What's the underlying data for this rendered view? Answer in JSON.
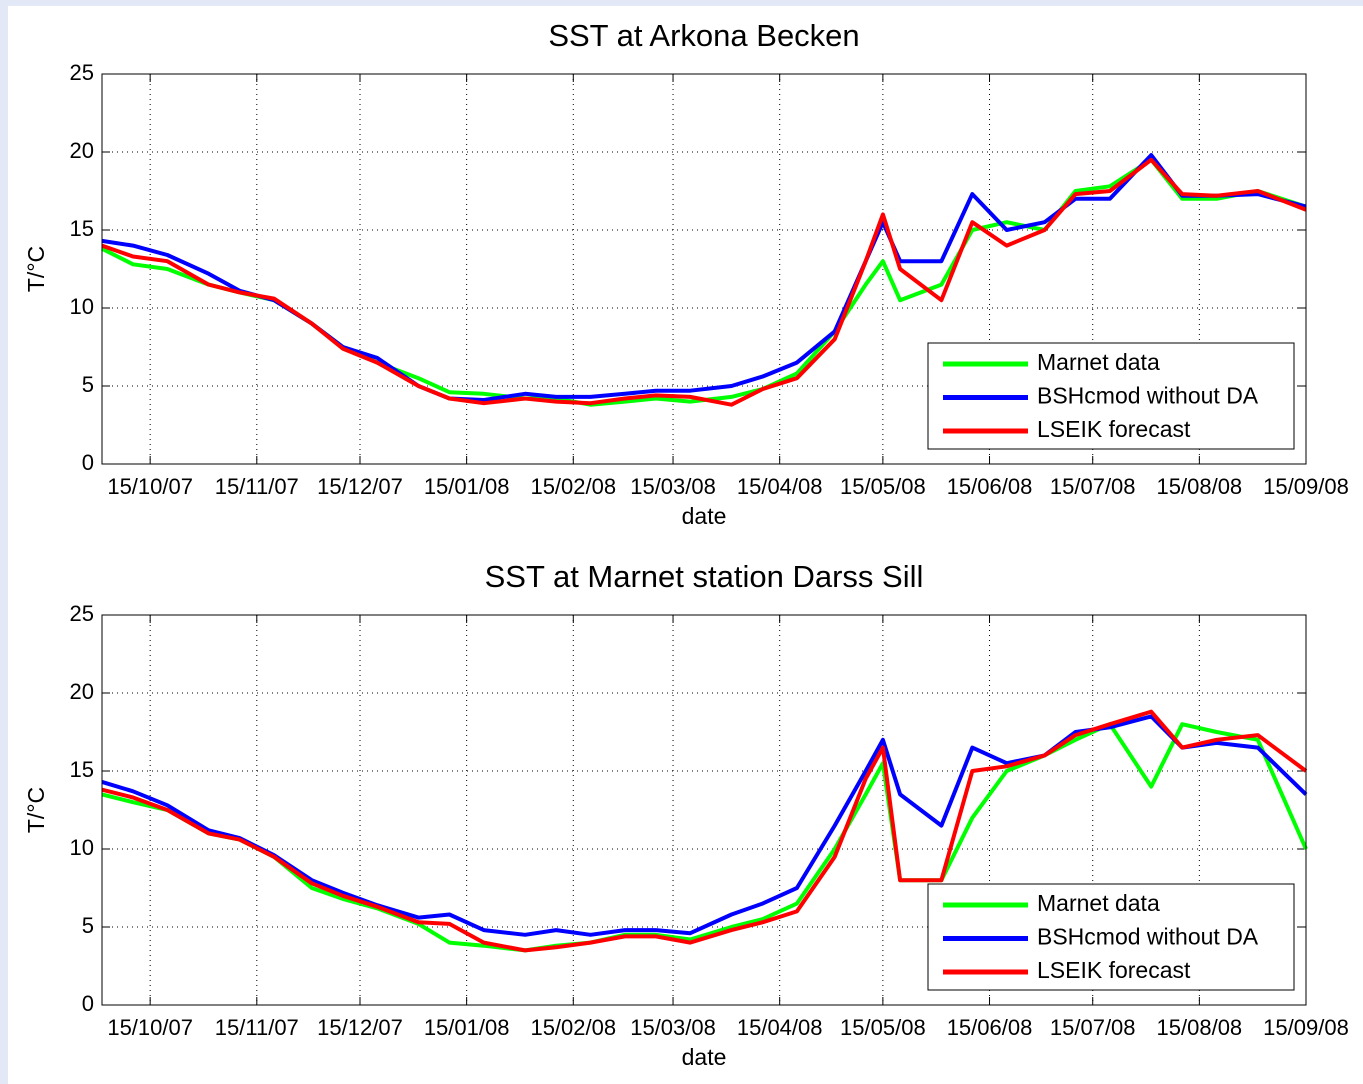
{
  "chart_data": [
    {
      "type": "line",
      "title": "SST at Arkona Becken",
      "xlabel": "date",
      "ylabel": "T/°C",
      "x": [
        "2007-10-01",
        "2007-10-10",
        "2007-10-20",
        "2007-11-01",
        "2007-11-10",
        "2007-11-20",
        "2007-12-01",
        "2007-12-10",
        "2007-12-20",
        "2008-01-01",
        "2008-01-10",
        "2008-01-20",
        "2008-02-01",
        "2008-02-10",
        "2008-02-20",
        "2008-03-01",
        "2008-03-10",
        "2008-03-20",
        "2008-04-01",
        "2008-04-10",
        "2008-04-20",
        "2008-05-01",
        "2008-05-10",
        "2008-05-15",
        "2008-05-20",
        "2008-06-01",
        "2008-06-10",
        "2008-06-20",
        "2008-07-01",
        "2008-07-10",
        "2008-07-20",
        "2008-08-01",
        "2008-08-10",
        "2008-08-20",
        "2008-09-01",
        "2008-09-15"
      ],
      "series": [
        {
          "name": "Marnet data",
          "color": "#00ff00",
          "values": [
            13.8,
            12.8,
            12.5,
            11.5,
            11.0,
            10.5,
            9.0,
            7.5,
            6.5,
            5.5,
            4.6,
            4.5,
            4.2,
            4.2,
            3.8,
            4.0,
            4.2,
            4.0,
            4.3,
            4.8,
            5.8,
            8.5,
            11.5,
            13.0,
            10.5,
            11.5,
            15.0,
            15.5,
            15.0,
            17.5,
            17.8,
            19.5,
            17.0,
            17.0,
            17.5,
            16.5
          ]
        },
        {
          "name": "BSHcmod without DA",
          "color": "#0000ff",
          "values": [
            14.3,
            14.0,
            13.4,
            12.2,
            11.1,
            10.5,
            9.0,
            7.5,
            6.8,
            5.0,
            4.2,
            4.1,
            4.5,
            4.3,
            4.3,
            4.5,
            4.7,
            4.7,
            5.0,
            5.6,
            6.5,
            8.5,
            13.0,
            15.5,
            13.0,
            13.0,
            17.3,
            15.0,
            15.5,
            17.0,
            17.0,
            19.8,
            17.2,
            17.2,
            17.3,
            16.5
          ]
        },
        {
          "name": "LSEIK forecast",
          "color": "#ff0000",
          "values": [
            14.0,
            13.3,
            13.0,
            11.5,
            11.0,
            10.6,
            9.0,
            7.4,
            6.5,
            5.0,
            4.2,
            3.9,
            4.2,
            4.0,
            3.9,
            4.2,
            4.4,
            4.3,
            3.8,
            4.8,
            5.5,
            8.0,
            13.0,
            16.0,
            12.5,
            10.5,
            15.5,
            14.0,
            15.0,
            17.3,
            17.5,
            19.5,
            17.3,
            17.2,
            17.5,
            16.3
          ]
        }
      ],
      "xlim": [
        "2007-10-01",
        "2008-09-15"
      ],
      "xticks": [
        {
          "value": "2007-10-15",
          "label": "15/10/07"
        },
        {
          "value": "2007-11-15",
          "label": "15/11/07"
        },
        {
          "value": "2007-12-15",
          "label": "15/12/07"
        },
        {
          "value": "2008-01-15",
          "label": "15/01/08"
        },
        {
          "value": "2008-02-15",
          "label": "15/02/08"
        },
        {
          "value": "2008-03-15",
          "label": "15/03/08"
        },
        {
          "value": "2008-04-15",
          "label": "15/04/08"
        },
        {
          "value": "2008-05-15",
          "label": "15/05/08"
        },
        {
          "value": "2008-06-15",
          "label": "15/06/08"
        },
        {
          "value": "2008-07-15",
          "label": "15/07/08"
        },
        {
          "value": "2008-08-15",
          "label": "15/08/08"
        },
        {
          "value": "2008-09-15",
          "label": "15/09/08"
        }
      ],
      "ylim": [
        0,
        25
      ],
      "yticks": [
        0,
        5,
        10,
        15,
        20,
        25
      ],
      "grid": true,
      "legend": "lower right"
    },
    {
      "type": "line",
      "title": "SST at Marnet station Darss Sill",
      "xlabel": "date",
      "ylabel": "T/°C",
      "x": [
        "2007-10-01",
        "2007-10-10",
        "2007-10-20",
        "2007-11-01",
        "2007-11-10",
        "2007-11-20",
        "2007-12-01",
        "2007-12-10",
        "2007-12-20",
        "2008-01-01",
        "2008-01-10",
        "2008-01-20",
        "2008-02-01",
        "2008-02-10",
        "2008-02-20",
        "2008-03-01",
        "2008-03-10",
        "2008-03-20",
        "2008-04-01",
        "2008-04-10",
        "2008-04-20",
        "2008-05-01",
        "2008-05-10",
        "2008-05-15",
        "2008-05-20",
        "2008-06-01",
        "2008-06-10",
        "2008-06-20",
        "2008-07-01",
        "2008-07-10",
        "2008-07-20",
        "2008-08-01",
        "2008-08-10",
        "2008-08-20",
        "2008-09-01",
        "2008-09-15"
      ],
      "series": [
        {
          "name": "Marnet data",
          "color": "#00ff00",
          "values": [
            13.5,
            13.0,
            12.5,
            11.0,
            10.6,
            9.5,
            7.5,
            6.8,
            6.2,
            5.2,
            4.0,
            3.8,
            3.5,
            3.8,
            4.0,
            4.5,
            4.5,
            4.2,
            5.0,
            5.5,
            6.5,
            10.0,
            13.5,
            15.5,
            8.0,
            8.0,
            12.0,
            15.0,
            16.0,
            17.0,
            18.0,
            14.0,
            18.0,
            17.5,
            17.0,
            10.0
          ]
        },
        {
          "name": "BSHcmod without DA",
          "color": "#0000ff",
          "values": [
            14.3,
            13.7,
            12.8,
            11.2,
            10.7,
            9.6,
            8.0,
            7.2,
            6.4,
            5.6,
            5.8,
            4.8,
            4.5,
            4.8,
            4.5,
            4.8,
            4.8,
            4.6,
            5.8,
            6.5,
            7.5,
            11.5,
            15.0,
            17.0,
            13.5,
            11.5,
            16.5,
            15.5,
            16.0,
            17.5,
            17.8,
            18.5,
            16.5,
            16.8,
            16.5,
            13.5
          ]
        },
        {
          "name": "LSEIK forecast",
          "color": "#ff0000",
          "values": [
            13.8,
            13.3,
            12.5,
            11.0,
            10.6,
            9.5,
            7.8,
            7.0,
            6.3,
            5.3,
            5.2,
            4.0,
            3.5,
            3.7,
            4.0,
            4.4,
            4.4,
            4.0,
            4.8,
            5.3,
            6.0,
            9.5,
            14.5,
            16.5,
            8.0,
            8.0,
            15.0,
            15.3,
            16.0,
            17.3,
            18.0,
            18.8,
            16.5,
            17.0,
            17.3,
            15.0
          ]
        }
      ],
      "xlim": [
        "2007-10-01",
        "2008-09-15"
      ],
      "xticks": [
        {
          "value": "2007-10-15",
          "label": "15/10/07"
        },
        {
          "value": "2007-11-15",
          "label": "15/11/07"
        },
        {
          "value": "2007-12-15",
          "label": "15/12/07"
        },
        {
          "value": "2008-01-15",
          "label": "15/01/08"
        },
        {
          "value": "2008-02-15",
          "label": "15/02/08"
        },
        {
          "value": "2008-03-15",
          "label": "15/03/08"
        },
        {
          "value": "2008-04-15",
          "label": "15/04/08"
        },
        {
          "value": "2008-05-15",
          "label": "15/05/08"
        },
        {
          "value": "2008-06-15",
          "label": "15/06/08"
        },
        {
          "value": "2008-07-15",
          "label": "15/07/08"
        },
        {
          "value": "2008-08-15",
          "label": "15/08/08"
        },
        {
          "value": "2008-09-15",
          "label": "15/09/08"
        }
      ],
      "ylim": [
        0,
        25
      ],
      "yticks": [
        0,
        5,
        10,
        15,
        20,
        25
      ],
      "grid": true,
      "legend": "lower right"
    }
  ]
}
